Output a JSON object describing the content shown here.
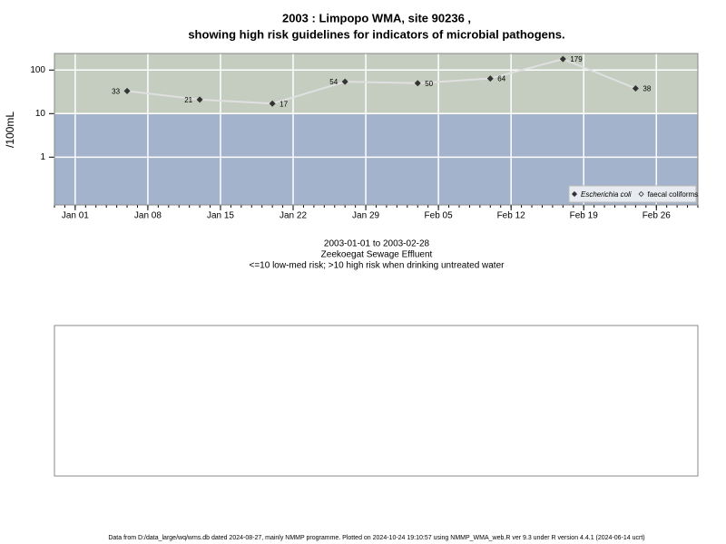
{
  "chart_data": {
    "type": "line",
    "title": "2003 : Limpopo WMA, site 90236 ,",
    "subtitle": "showing high risk guidelines for indicators of microbial pathogens.",
    "y_label": "/100mL",
    "notes": [
      "2003-01-01 to 2003-02-28",
      "Zeekoegat Sewage Effluent",
      "<=10 low-med risk; >10 high risk when drinking untreated water"
    ],
    "footer": "Data from D:/data_large/wq/wms.db dated 2024-08-27, mainly NMMP programme. Plotted on 2024-10-24 19:10:57 using NMMP_WMA_web.R ver 9.3 under R version 4.4.1 (2024-06-14 ucrt)",
    "x": [
      "2003-01-06",
      "2003-01-13",
      "2003-01-20",
      "2003-01-27",
      "2003-02-03",
      "2003-02-10",
      "2003-02-17",
      "2003-02-24"
    ],
    "series": [
      {
        "name": "Escherichia coli",
        "color": "#333333",
        "line_color": "#e0e0e0",
        "values": [
          33,
          21,
          17,
          54,
          50,
          64,
          179,
          38
        ]
      },
      {
        "name": "faecal coliforms",
        "color": "#333333",
        "values": [
          null,
          null,
          null,
          null,
          null,
          null,
          null,
          null
        ]
      }
    ],
    "xlim": [
      "2002-12-30",
      "2003-03-02"
    ],
    "xticks": [
      {
        "value": "2003-01-01",
        "label": "Jan 01"
      },
      {
        "value": "2003-01-08",
        "label": "Jan 08"
      },
      {
        "value": "2003-01-15",
        "label": "Jan 15"
      },
      {
        "value": "2003-01-22",
        "label": "Jan 22"
      },
      {
        "value": "2003-01-29",
        "label": "Jan 29"
      },
      {
        "value": "2003-02-05",
        "label": "Feb 05"
      },
      {
        "value": "2003-02-12",
        "label": "Feb 12"
      },
      {
        "value": "2003-02-19",
        "label": "Feb 19"
      },
      {
        "value": "2003-02-26",
        "label": "Feb 26"
      }
    ],
    "ylim": [
      0.08,
      240
    ],
    "yticks": [
      1,
      10,
      100
    ],
    "log_y": true,
    "grid": true,
    "threshold": 10,
    "high_color": "#c4cdc0",
    "low_color": "#a3b3cb",
    "legend": "lower right"
  }
}
